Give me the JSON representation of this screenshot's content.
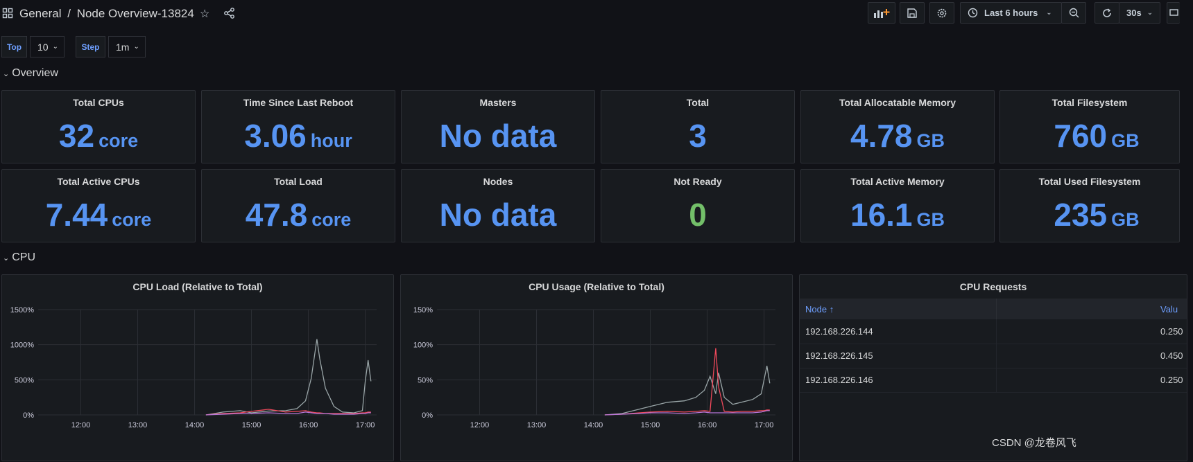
{
  "header": {
    "folder": "General",
    "separator": "/",
    "dashboard_title": "Node Overview-13824",
    "time_range": "Last 6 hours",
    "refresh_interval": "30s"
  },
  "variables": [
    {
      "label": "Top",
      "value": "10"
    },
    {
      "label": "Step",
      "value": "1m"
    }
  ],
  "rows": {
    "overview": "Overview",
    "cpu": "CPU"
  },
  "stats": [
    {
      "title": "Total CPUs",
      "value": "32",
      "unit": "core"
    },
    {
      "title": "Time Since Last Reboot",
      "value": "3.06",
      "unit": "hour"
    },
    {
      "title": "Masters",
      "value": "No data",
      "unit": ""
    },
    {
      "title": "Total",
      "value": "3",
      "unit": ""
    },
    {
      "title": "Total Allocatable Memory",
      "value": "4.78",
      "unit": "GB"
    },
    {
      "title": "Total Filesystem",
      "value": "760",
      "unit": "GB"
    },
    {
      "title": "Total Active CPUs",
      "value": "7.44",
      "unit": "core"
    },
    {
      "title": "Total Load",
      "value": "47.8",
      "unit": "core"
    },
    {
      "title": "Nodes",
      "value": "No data",
      "unit": ""
    },
    {
      "title": "Not Ready",
      "value": "0",
      "unit": ""
    },
    {
      "title": "Total Active Memory",
      "value": "16.1",
      "unit": "GB"
    },
    {
      "title": "Total Used Filesystem",
      "value": "235",
      "unit": "GB"
    }
  ],
  "colors": {
    "stat_value": "#5794f2",
    "stat_ok": "#73bf69",
    "background": "#111217",
    "panel": "#181b1f"
  },
  "chart_data": [
    {
      "type": "line",
      "title": "CPU Load (Relative to Total)",
      "x_ticks": [
        "12:00",
        "13:00",
        "14:00",
        "15:00",
        "16:00",
        "17:00"
      ],
      "y_ticks": [
        "0%",
        "500%",
        "1000%",
        "1500%"
      ],
      "ylim": [
        0,
        1500
      ],
      "x": [
        14.2,
        14.5,
        14.8,
        15.0,
        15.3,
        15.6,
        15.8,
        15.95,
        16.05,
        16.15,
        16.2,
        16.3,
        16.45,
        16.6,
        16.8,
        16.95,
        17.0,
        17.05,
        17.1
      ],
      "series": [
        {
          "values": [
            0,
            40,
            60,
            30,
            55,
            60,
            90,
            200,
            520,
            1080,
            800,
            380,
            120,
            40,
            30,
            60,
            480,
            780,
            480
          ]
        },
        {
          "values": [
            0,
            20,
            30,
            50,
            80,
            40,
            50,
            60,
            40,
            30,
            30,
            20,
            20,
            20,
            20,
            30,
            30,
            40,
            40
          ]
        },
        {
          "values": [
            0,
            10,
            20,
            20,
            30,
            20,
            20,
            40,
            30,
            20,
            20,
            20,
            10,
            10,
            10,
            20,
            20,
            30,
            30
          ]
        }
      ]
    },
    {
      "type": "line",
      "title": "CPU Usage (Relative to Total)",
      "x_ticks": [
        "12:00",
        "13:00",
        "14:00",
        "15:00",
        "16:00",
        "17:00"
      ],
      "y_ticks": [
        "0%",
        "50%",
        "100%",
        "150%"
      ],
      "ylim": [
        0,
        150
      ],
      "x": [
        14.2,
        14.5,
        14.8,
        15.0,
        15.3,
        15.6,
        15.8,
        15.95,
        16.05,
        16.15,
        16.2,
        16.3,
        16.45,
        16.6,
        16.8,
        16.95,
        17.0,
        17.05,
        17.1
      ],
      "series": [
        {
          "values": [
            0,
            2,
            8,
            12,
            18,
            20,
            25,
            35,
            55,
            30,
            60,
            25,
            15,
            18,
            22,
            30,
            50,
            70,
            45
          ]
        },
        {
          "values": [
            0,
            1,
            3,
            4,
            5,
            4,
            5,
            6,
            5,
            95,
            40,
            5,
            4,
            5,
            5,
            6,
            6,
            7,
            7
          ]
        },
        {
          "values": [
            0,
            1,
            2,
            3,
            3,
            2,
            3,
            4,
            3,
            3,
            3,
            3,
            3,
            3,
            3,
            4,
            5,
            6,
            6
          ]
        }
      ]
    }
  ],
  "series_colors": [
    "#9aa6a8",
    "#f2495c",
    "#b877d9",
    "#fade2a",
    "#5794f2"
  ],
  "cpu_requests": {
    "title": "CPU Requests",
    "columns": [
      "Node ↑",
      "Valu"
    ],
    "rows": [
      {
        "node": "192.168.226.144",
        "value": "0.250"
      },
      {
        "node": "192.168.226.145",
        "value": "0.450"
      },
      {
        "node": "192.168.226.146",
        "value": "0.250"
      }
    ]
  },
  "watermark": "CSDN @龙卷风飞"
}
